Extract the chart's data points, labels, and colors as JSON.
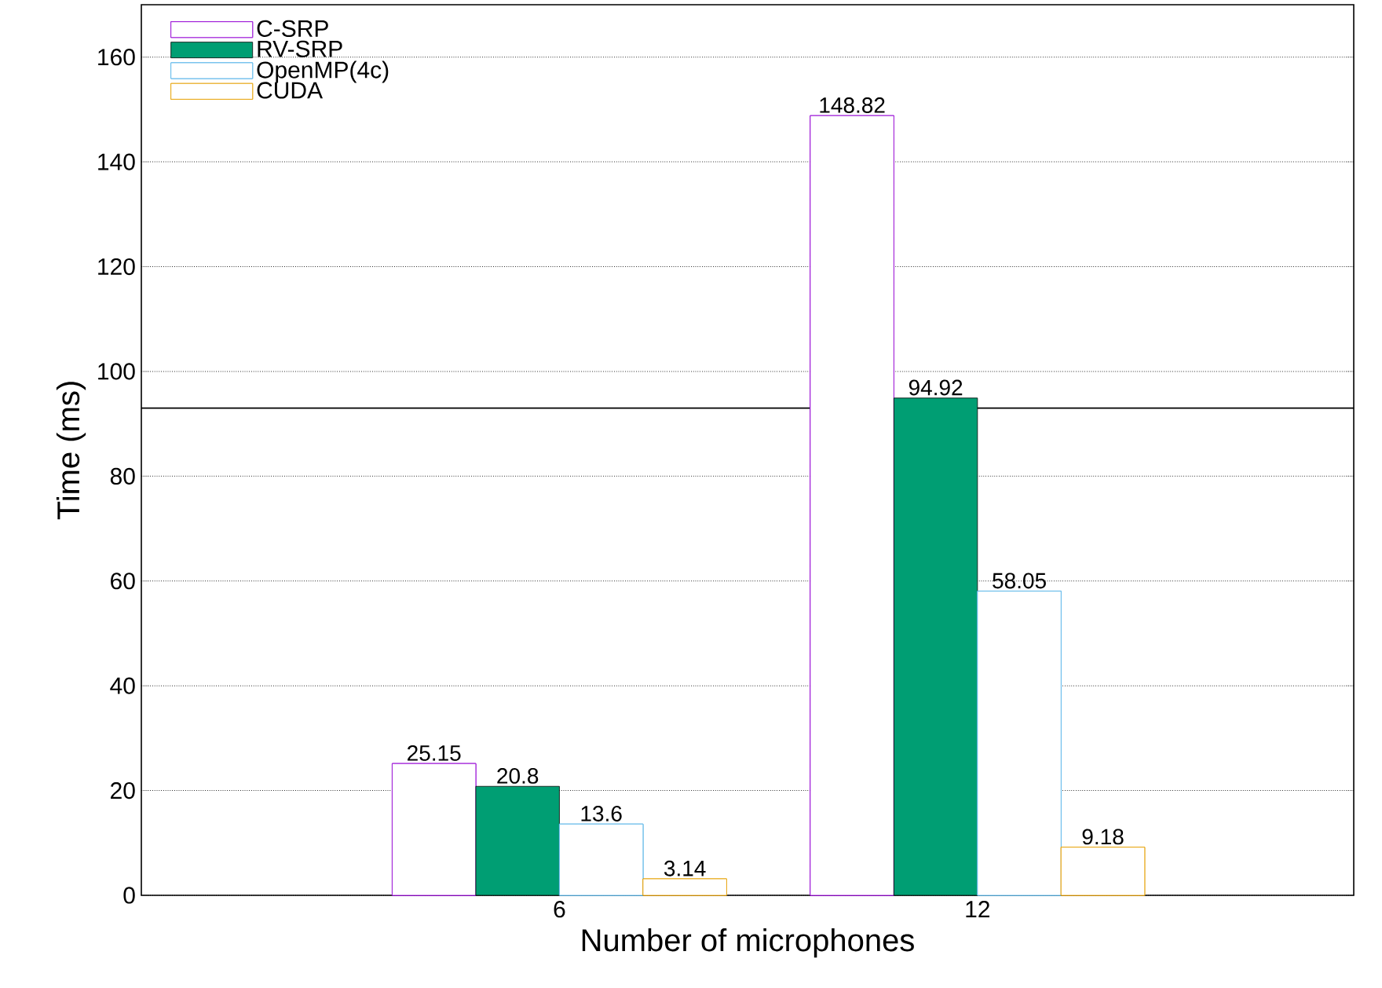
{
  "chart_data": {
    "type": "bar",
    "xlabel": "Number of microphones",
    "ylabel": "Time (ms)",
    "categories": [
      "6",
      "12"
    ],
    "series": [
      {
        "name": "C-SRP",
        "color": "#9400d3",
        "values": [
          25.15,
          148.82
        ]
      },
      {
        "name": "RV-SRP",
        "color": "#009e73",
        "values": [
          20.8,
          94.92
        ]
      },
      {
        "name": "OpenMP(4c)",
        "color": "#56b4e9",
        "values": [
          13.6,
          58.05
        ]
      },
      {
        "name": "CUDA",
        "color": "#e69f00",
        "values": [
          3.14,
          9.18
        ]
      }
    ],
    "ylim": [
      0,
      170
    ],
    "yticks": [
      0,
      20,
      40,
      60,
      80,
      100,
      120,
      140,
      160
    ],
    "ref_lines": [
      {
        "axis": "y",
        "value": 93,
        "color": "#000000"
      }
    ],
    "grid": "y",
    "legend": "top left",
    "data_labels": true
  }
}
